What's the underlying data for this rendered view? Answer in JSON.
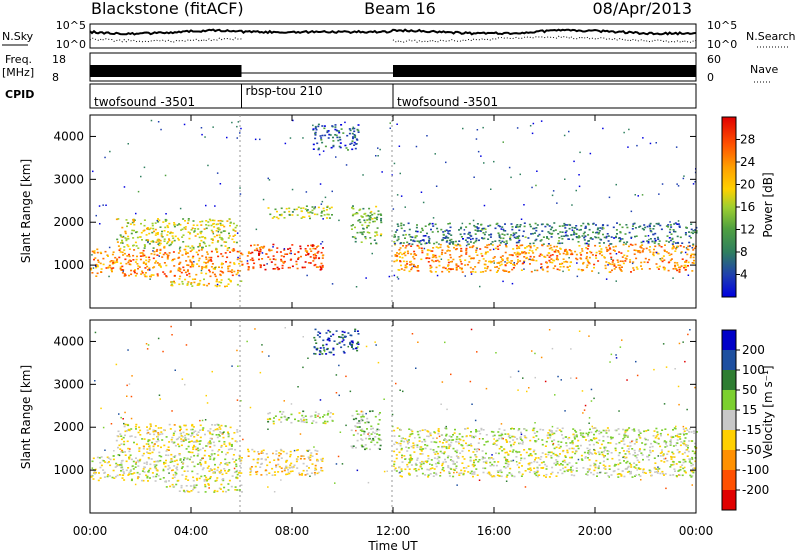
{
  "header": {
    "station": "Blackstone (fitACF)",
    "beam": "Beam 16",
    "date": "08/Apr/2013"
  },
  "noise_panel": {
    "left_label": "N.Sky",
    "right_label": "N.Search",
    "ticks": [
      "10^5",
      "10^0"
    ],
    "left_legend_style": "solid",
    "right_legend_style": "dotted"
  },
  "freq_panel": {
    "left_label_line1": "Freq.",
    "left_label_line2": "[MHz]",
    "left_ticks": [
      "18",
      "8"
    ],
    "right_label": "Nave",
    "right_ticks": [
      "60",
      "0"
    ]
  },
  "cpid_panel": {
    "label": "CPID",
    "segments": [
      {
        "name": "twofsound -3501",
        "start_hour": 0,
        "end_hour": 6
      },
      {
        "name": "rbsp-tou 210",
        "start_hour": 6,
        "end_hour": 12
      },
      {
        "name": "twofsound -3501",
        "start_hour": 12,
        "end_hour": 24
      }
    ]
  },
  "power_panel": {
    "ylabel": "Slant Range [km]",
    "yticks": [
      "1000",
      "2000",
      "3000",
      "4000"
    ],
    "colorbar": {
      "label": "Power [dB]",
      "ticks": [
        "4",
        "8",
        "12",
        "16",
        "20",
        "24",
        "28"
      ],
      "colors": [
        "#0000e0",
        "#1f3fb0",
        "#2f7f5f",
        "#4fa040",
        "#9fcf2f",
        "#ffd000",
        "#ffa000",
        "#ff7000",
        "#ff3000",
        "#e00000"
      ]
    }
  },
  "velocity_panel": {
    "ylabel": "Slant Range [km]",
    "yticks": [
      "1000",
      "2000",
      "3000",
      "4000"
    ],
    "colorbar": {
      "label": "Velocity [m s⁻¹]",
      "ticks": [
        "200",
        "100",
        "50",
        "15",
        "-15",
        "-50",
        "-100",
        "-200"
      ],
      "colors": [
        "#0000c8",
        "#1e50a0",
        "#2e7d32",
        "#7ccf2f",
        "#c8c8c8",
        "#ffd000",
        "#ff9000",
        "#ff5000",
        "#e00000"
      ]
    }
  },
  "xaxis": {
    "label": "Time UT",
    "ticks": [
      "00:00",
      "04:00",
      "08:00",
      "12:00",
      "16:00",
      "20:00",
      "00:00"
    ]
  },
  "chart_data": {
    "type": "heatmap",
    "title": "Blackstone (fitACF)",
    "subtitle": "Beam 16",
    "date": "08/Apr/2013",
    "x_label": "Time UT",
    "y_label": "Slant Range [km]",
    "x_range_hours": [
      0,
      24
    ],
    "y_range_km": [
      0,
      4500
    ],
    "power_range_db": [
      0,
      32
    ],
    "velocity_range": [
      -250,
      250
    ],
    "grid": false,
    "mode_changes_hours": [
      6,
      12
    ],
    "scatter_regions": [
      {
        "t_start": 0.0,
        "t_end": 6.0,
        "range_low": 750,
        "range_high": 1400,
        "power_db": 22,
        "velocity": 0
      },
      {
        "t_start": 1.0,
        "t_end": 5.8,
        "range_low": 1400,
        "range_high": 2100,
        "power_db": 16,
        "velocity": -20
      },
      {
        "t_start": 3.0,
        "t_end": 6.0,
        "range_low": 500,
        "range_high": 700,
        "power_db": 18,
        "velocity": 0
      },
      {
        "t_start": 6.2,
        "t_end": 9.2,
        "range_low": 900,
        "range_high": 1500,
        "power_db": 26,
        "velocity": -45
      },
      {
        "t_start": 7.0,
        "t_end": 9.6,
        "range_low": 2100,
        "range_high": 2400,
        "power_db": 14,
        "velocity": 20
      },
      {
        "t_start": 8.8,
        "t_end": 10.6,
        "range_low": 3700,
        "range_high": 4300,
        "power_db": 6,
        "velocity": 180
      },
      {
        "t_start": 10.3,
        "t_end": 11.5,
        "range_low": 1500,
        "range_high": 2400,
        "power_db": 12,
        "velocity": 40
      },
      {
        "t_start": 12.0,
        "t_end": 24.0,
        "range_low": 850,
        "range_high": 1500,
        "power_db": 22,
        "velocity": 0
      },
      {
        "t_start": 12.0,
        "t_end": 24.0,
        "range_low": 1500,
        "range_high": 2000,
        "power_db": 8,
        "velocity": 10
      }
    ]
  }
}
